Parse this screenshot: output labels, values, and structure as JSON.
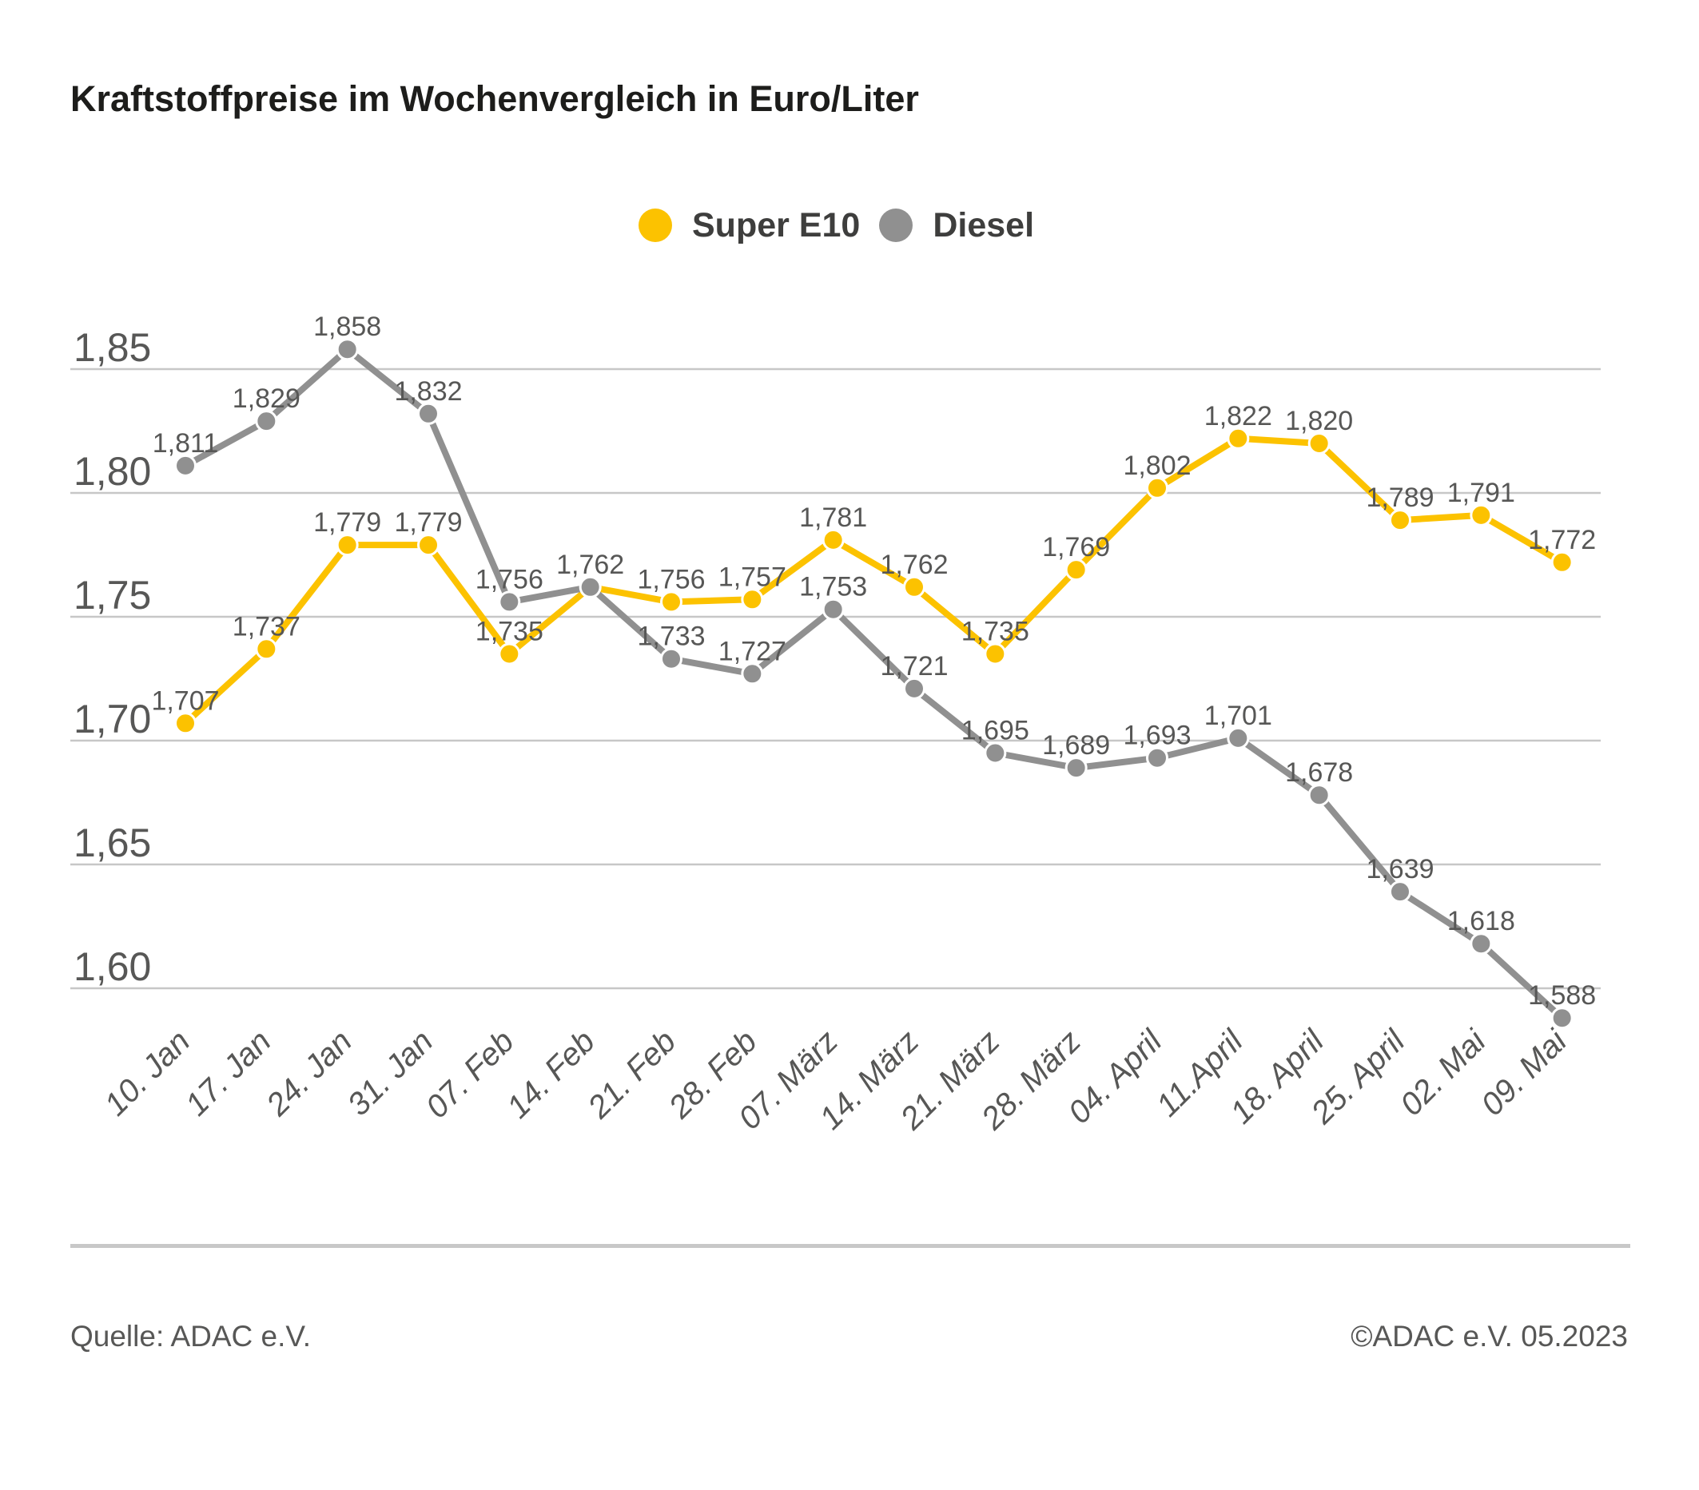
{
  "page": {
    "title": "Kraftstoffpreise im Wochenvergleich in Euro/Liter",
    "footer": {
      "source": "Quelle: ADAC e.V.",
      "copyright": "©ADAC e.V. 05.2023"
    }
  },
  "chart_data": {
    "type": "line",
    "title": "Kraftstoffpreise im Wochenvergleich in Euro/Liter",
    "unit": "Euro/Liter",
    "categories": [
      "10. Jan",
      "17. Jan",
      "24. Jan",
      "31. Jan",
      "07. Feb",
      "14. Feb",
      "21. Feb",
      "28. Feb",
      "07. März",
      "14. März",
      "21. März",
      "28. März",
      "04. April",
      "11.April",
      "18. April",
      "25. April",
      "02. Mai",
      "09. Mai"
    ],
    "series": [
      {
        "name": "Super E10",
        "color": "#FCC200",
        "values": [
          1.707,
          1.737,
          1.779,
          1.779,
          1.735,
          1.762,
          1.756,
          1.757,
          1.781,
          1.762,
          1.735,
          1.769,
          1.802,
          1.822,
          1.82,
          1.789,
          1.791,
          1.772
        ]
      },
      {
        "name": "Diesel",
        "color": "#909090",
        "values": [
          1.811,
          1.829,
          1.858,
          1.832,
          1.756,
          1.762,
          1.733,
          1.727,
          1.753,
          1.721,
          1.695,
          1.689,
          1.693,
          1.701,
          1.678,
          1.639,
          1.618,
          1.588
        ]
      }
    ],
    "yticks": [
      1.85,
      1.8,
      1.75,
      1.7,
      1.65,
      1.6
    ],
    "ylim": [
      1.575,
      1.875
    ],
    "grid": true,
    "grid_color": "#c7c7c7",
    "label_color": "#575756",
    "value_labels": true,
    "legend_position": "top-center",
    "decimal_separator": ","
  }
}
